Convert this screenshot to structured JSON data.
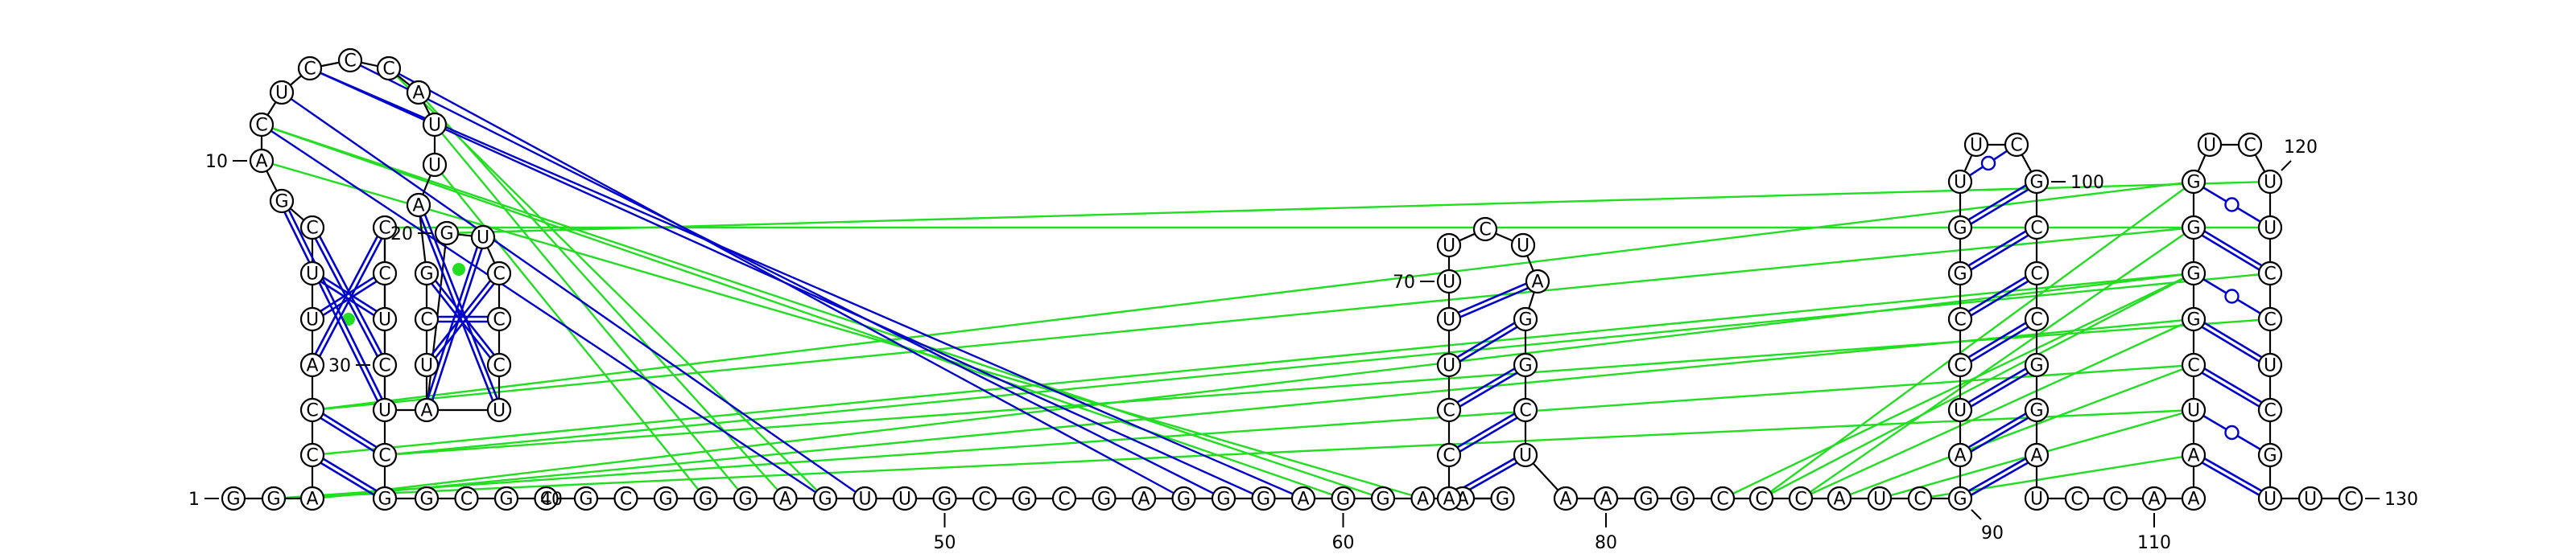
{
  "colors": {
    "canonical_pair": "#0000cc",
    "pseudoknot_pair": "#22dd22",
    "backbone": "#000000"
  },
  "sequence": [
    {
      "i": 1,
      "b": "G"
    },
    {
      "i": 2,
      "b": "G"
    },
    {
      "i": 3,
      "b": "A"
    },
    {
      "i": 4,
      "b": "C"
    },
    {
      "i": 5,
      "b": "C"
    },
    {
      "i": 6,
      "b": "A"
    },
    {
      "i": 7,
      "b": "U"
    },
    {
      "i": 8,
      "b": "U"
    },
    {
      "i": 9,
      "b": "C"
    },
    {
      "i": 10,
      "b": "G"
    },
    {
      "i": 11,
      "b": "A"
    },
    {
      "i": 12,
      "b": "C"
    },
    {
      "i": 13,
      "b": "U"
    },
    {
      "i": 14,
      "b": "C"
    },
    {
      "i": 15,
      "b": "C"
    },
    {
      "i": 16,
      "b": "C"
    },
    {
      "i": 17,
      "b": "A"
    },
    {
      "i": 18,
      "b": "U"
    },
    {
      "i": 19,
      "b": "U"
    },
    {
      "i": 20,
      "b": "A"
    },
    {
      "i": 21,
      "b": "G"
    },
    {
      "i": 22,
      "b": "C"
    },
    {
      "i": 23,
      "b": "U"
    },
    {
      "i": 24,
      "b": "A"
    },
    {
      "i": 25,
      "b": "G"
    },
    {
      "i": 26,
      "b": "U"
    },
    {
      "i": 27,
      "b": "C"
    },
    {
      "i": 28,
      "b": "C"
    },
    {
      "i": 29,
      "b": "C"
    },
    {
      "i": 30,
      "b": "U"
    },
    {
      "i": 31,
      "b": "U"
    },
    {
      "i": 32,
      "b": "C"
    },
    {
      "i": 33,
      "b": "U"
    },
    {
      "i": 34,
      "b": "C"
    },
    {
      "i": 35,
      "b": "C"
    },
    {
      "i": 36,
      "b": "C"
    },
    {
      "i": 37,
      "b": "G"
    },
    {
      "i": 38,
      "b": "G"
    },
    {
      "i": 39,
      "b": "C"
    },
    {
      "i": 40,
      "b": "G"
    },
    {
      "i": 41,
      "b": "C"
    },
    {
      "i": 42,
      "b": "G"
    },
    {
      "i": 43,
      "b": "C"
    },
    {
      "i": 44,
      "b": "G"
    },
    {
      "i": 45,
      "b": "G"
    },
    {
      "i": 46,
      "b": "G"
    },
    {
      "i": 47,
      "b": "A"
    },
    {
      "i": 48,
      "b": "G"
    },
    {
      "i": 49,
      "b": "U"
    },
    {
      "i": 50,
      "b": "U"
    },
    {
      "i": 51,
      "b": "G"
    },
    {
      "i": 52,
      "b": "C"
    },
    {
      "i": 53,
      "b": "G"
    },
    {
      "i": 54,
      "b": "C"
    },
    {
      "i": 55,
      "b": "G"
    },
    {
      "i": 56,
      "b": "A"
    },
    {
      "i": 57,
      "b": "G"
    },
    {
      "i": 58,
      "b": "G"
    },
    {
      "i": 59,
      "b": "G"
    },
    {
      "i": 60,
      "b": "A"
    },
    {
      "i": 61,
      "b": "G"
    },
    {
      "i": 62,
      "b": "G"
    },
    {
      "i": 63,
      "b": "A"
    },
    {
      "i": 64,
      "b": "A"
    },
    {
      "i": 65,
      "b": "G"
    },
    {
      "i": 66,
      "b": "A"
    },
    {
      "i": 67,
      "b": "C"
    },
    {
      "i": 68,
      "b": "C"
    },
    {
      "i": 69,
      "b": "U"
    },
    {
      "i": 70,
      "b": "U"
    },
    {
      "i": 71,
      "b": "U"
    },
    {
      "i": 72,
      "b": "U"
    },
    {
      "i": 73,
      "b": "C"
    },
    {
      "i": 74,
      "b": "U"
    },
    {
      "i": 75,
      "b": "A"
    },
    {
      "i": 76,
      "b": "G"
    },
    {
      "i": 77,
      "b": "G"
    },
    {
      "i": 78,
      "b": "C"
    },
    {
      "i": 79,
      "b": "U"
    },
    {
      "i": 80,
      "b": "A"
    },
    {
      "i": 81,
      "b": "A"
    },
    {
      "i": 82,
      "b": "G"
    },
    {
      "i": 83,
      "b": "G"
    },
    {
      "i": 84,
      "b": "C"
    },
    {
      "i": 85,
      "b": "C"
    },
    {
      "i": 86,
      "b": "C"
    },
    {
      "i": 87,
      "b": "A"
    },
    {
      "i": 88,
      "b": "U"
    },
    {
      "i": 89,
      "b": "C"
    },
    {
      "i": 90,
      "b": "G"
    },
    {
      "i": 91,
      "b": "A"
    },
    {
      "i": 92,
      "b": "U"
    },
    {
      "i": 93,
      "b": "C"
    },
    {
      "i": 94,
      "b": "C"
    },
    {
      "i": 95,
      "b": "G"
    },
    {
      "i": 96,
      "b": "G"
    },
    {
      "i": 97,
      "b": "U"
    },
    {
      "i": 98,
      "b": "U"
    },
    {
      "i": 99,
      "b": "C"
    },
    {
      "i": 100,
      "b": "G"
    },
    {
      "i": 101,
      "b": "C"
    },
    {
      "i": 102,
      "b": "C"
    },
    {
      "i": 103,
      "b": "C"
    },
    {
      "i": 104,
      "b": "G"
    },
    {
      "i": 105,
      "b": "G"
    },
    {
      "i": 106,
      "b": "A"
    },
    {
      "i": 107,
      "b": "U"
    },
    {
      "i": 108,
      "b": "C"
    },
    {
      "i": 109,
      "b": "C"
    },
    {
      "i": 110,
      "b": "A"
    },
    {
      "i": 111,
      "b": "A"
    },
    {
      "i": 112,
      "b": "A"
    },
    {
      "i": 113,
      "b": "U"
    },
    {
      "i": 114,
      "b": "C"
    },
    {
      "i": 115,
      "b": "G"
    },
    {
      "i": 116,
      "b": "G"
    },
    {
      "i": 117,
      "b": "G"
    },
    {
      "i": 118,
      "b": "G"
    },
    {
      "i": 119,
      "b": "U"
    },
    {
      "i": 120,
      "b": "C"
    },
    {
      "i": 121,
      "b": "U"
    },
    {
      "i": 122,
      "b": "U"
    },
    {
      "i": 123,
      "b": "C"
    },
    {
      "i": 124,
      "b": "C"
    },
    {
      "i": 125,
      "b": "U"
    },
    {
      "i": 126,
      "b": "C"
    },
    {
      "i": 127,
      "b": "G"
    },
    {
      "i": 128,
      "b": "U"
    },
    {
      "i": 129,
      "b": "U"
    },
    {
      "i": 130,
      "b": "C"
    }
  ],
  "pairs": [
    {
      "a": 4,
      "b": 37,
      "type": "wc"
    },
    {
      "a": 5,
      "b": 36,
      "type": "wc"
    },
    {
      "a": 6,
      "b": 35,
      "type": "wc"
    },
    {
      "a": 7,
      "b": 34,
      "type": "wc"
    },
    {
      "a": 8,
      "b": 33,
      "type": "wc"
    },
    {
      "a": 9,
      "b": 32,
      "type": "wc"
    },
    {
      "a": 10,
      "b": 31,
      "type": "wc"
    },
    {
      "a": 21,
      "b": 29,
      "type": "wc"
    },
    {
      "a": 22,
      "b": 28,
      "type": "wc"
    },
    {
      "a": 23,
      "b": 27,
      "type": "wc"
    },
    {
      "a": 24,
      "b": 26,
      "type": "wc"
    },
    {
      "a": 20,
      "b": 30,
      "type": "wc"
    },
    {
      "a": 66,
      "b": 79,
      "type": "wc"
    },
    {
      "a": 67,
      "b": 78,
      "type": "wc"
    },
    {
      "a": 68,
      "b": 77,
      "type": "wc"
    },
    {
      "a": 69,
      "b": 76,
      "type": "wc"
    },
    {
      "a": 70,
      "b": 75,
      "type": "wc"
    },
    {
      "a": 90,
      "b": 106,
      "type": "wc"
    },
    {
      "a": 91,
      "b": 105,
      "type": "wc"
    },
    {
      "a": 92,
      "b": 104,
      "type": "wc"
    },
    {
      "a": 93,
      "b": 103,
      "type": "wc"
    },
    {
      "a": 94,
      "b": 102,
      "type": "wc"
    },
    {
      "a": 95,
      "b": 101,
      "type": "wc"
    },
    {
      "a": 96,
      "b": 100,
      "type": "wc"
    },
    {
      "a": 97,
      "b": 99,
      "type": "gu"
    },
    {
      "a": 112,
      "b": 128,
      "type": "wc"
    },
    {
      "a": 113,
      "b": 127,
      "type": "gu"
    },
    {
      "a": 114,
      "b": 126,
      "type": "wc"
    },
    {
      "a": 115,
      "b": 125,
      "type": "wc"
    },
    {
      "a": 116,
      "b": 124,
      "type": "gu"
    },
    {
      "a": 117,
      "b": 123,
      "type": "wc"
    },
    {
      "a": 118,
      "b": 122,
      "type": "gu"
    }
  ],
  "labels": [
    {
      "text": "1",
      "at": 1,
      "dir": "left"
    },
    {
      "text": "10",
      "at": 11,
      "dir": "left"
    },
    {
      "text": "20",
      "at": 25,
      "dir": "left"
    },
    {
      "text": "30",
      "at": 32,
      "dir": "left"
    },
    {
      "text": "40",
      "at": 40,
      "dir": "right"
    },
    {
      "text": "50",
      "at": 51,
      "dir": "down"
    },
    {
      "text": "60",
      "at": 61,
      "dir": "down"
    },
    {
      "text": "70",
      "at": 71,
      "dir": "left"
    },
    {
      "text": "80",
      "at": 81,
      "dir": "down"
    },
    {
      "text": "90",
      "at": 90,
      "dir": "down-right"
    },
    {
      "text": "100",
      "at": 100,
      "dir": "right"
    },
    {
      "text": "110",
      "at": 110,
      "dir": "down"
    },
    {
      "text": "120",
      "at": 121,
      "dir": "up-right"
    },
    {
      "text": "130",
      "at": 130,
      "dir": "right"
    }
  ]
}
